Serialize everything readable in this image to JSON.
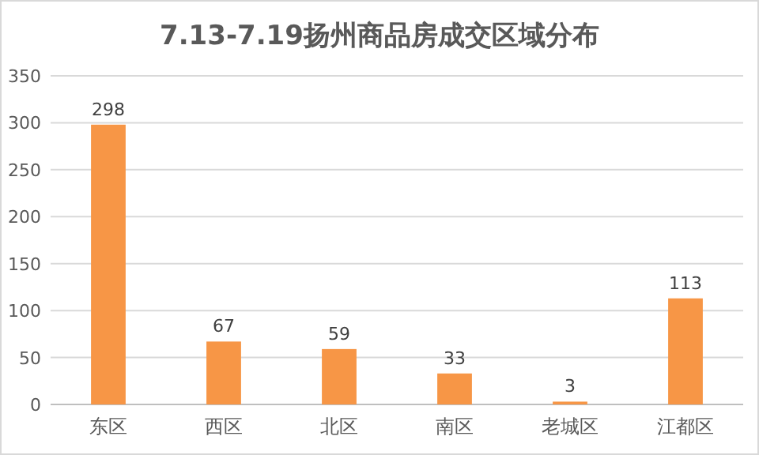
{
  "chart_data": {
    "type": "bar",
    "title": "7.13-7.19扬州商品房成交区域分布",
    "categories": [
      "东区",
      "西区",
      "北区",
      "南区",
      "老城区",
      "江都区"
    ],
    "values": [
      298,
      67,
      59,
      33,
      3,
      113
    ],
    "color": "#f79646",
    "ylim": [
      0,
      350
    ],
    "yticks": [
      0,
      50,
      100,
      150,
      200,
      250,
      300,
      350
    ],
    "grid": "y",
    "data_labels": true
  }
}
